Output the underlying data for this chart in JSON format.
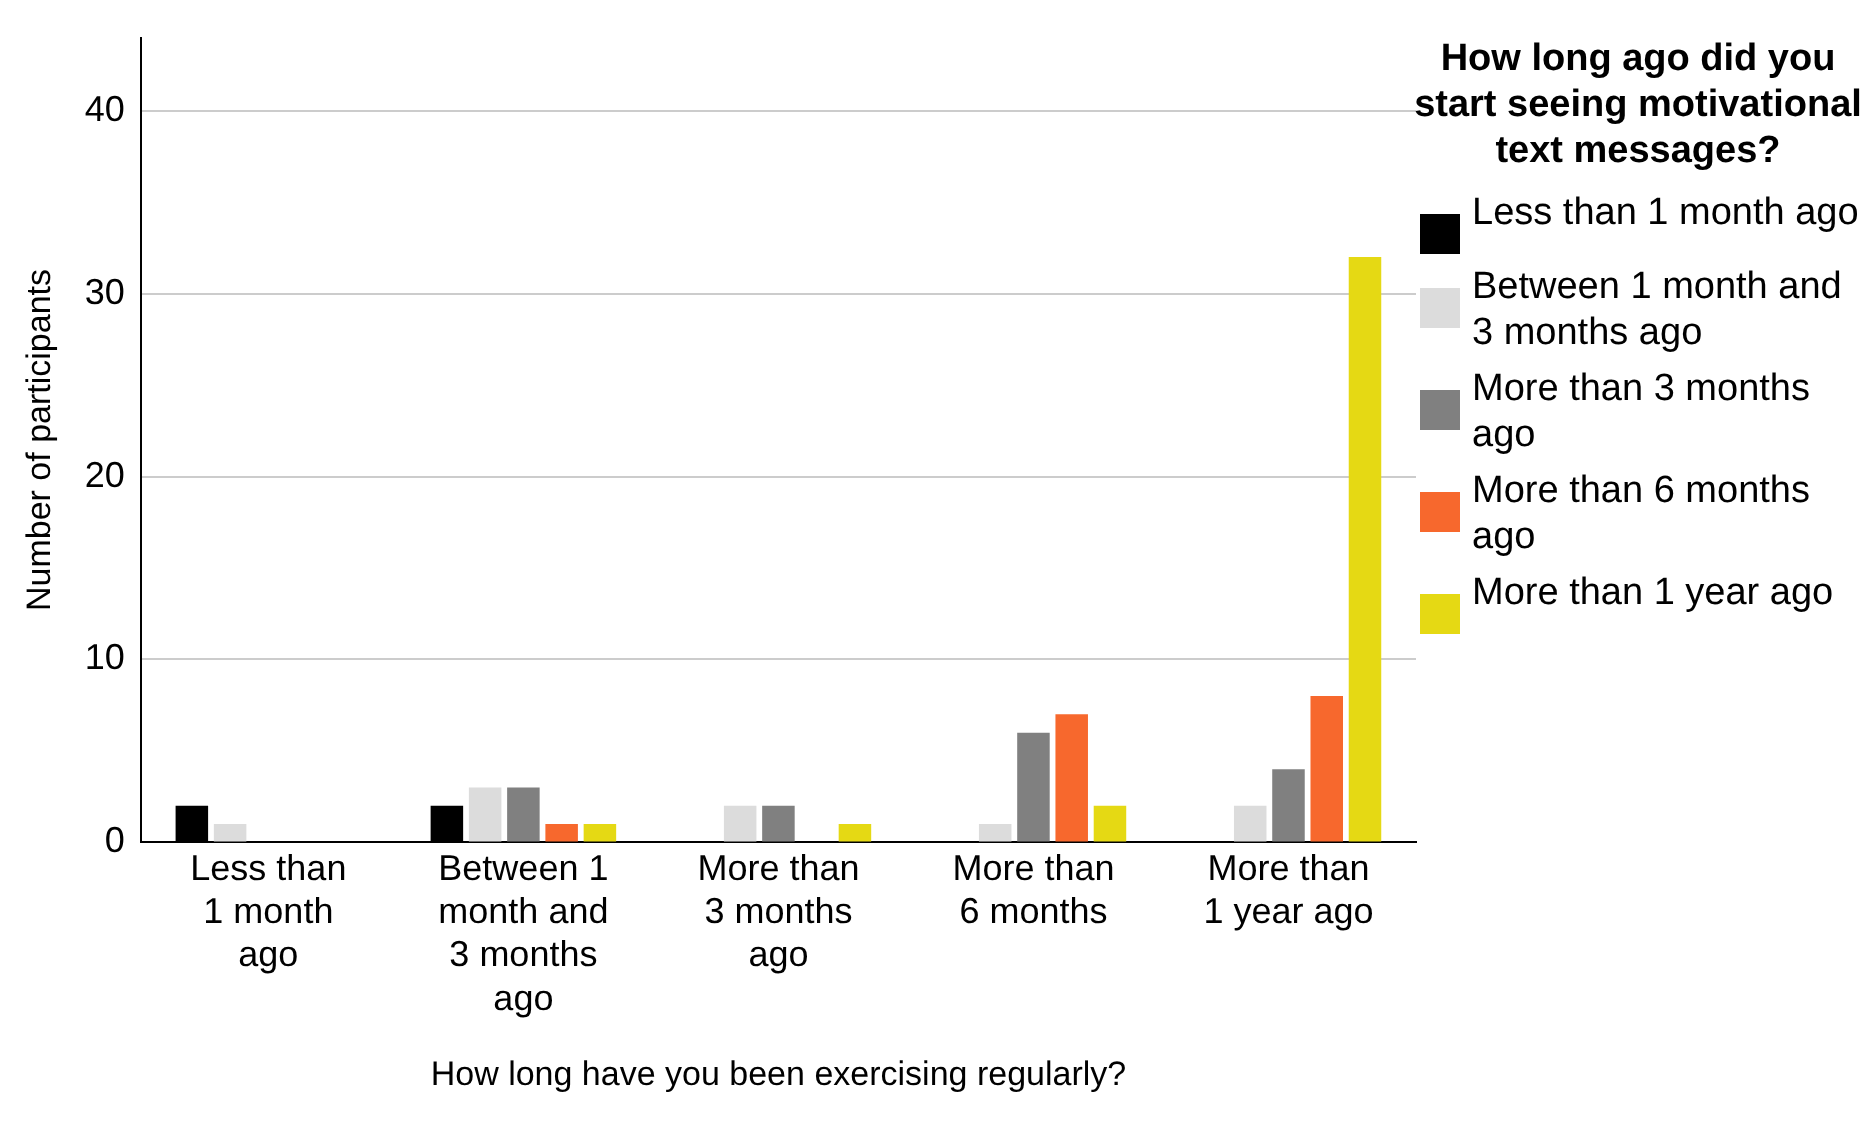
{
  "chart_data": {
    "type": "bar",
    "xlabel": "How long have you been exercising regularly?",
    "ylabel": "Number of participants",
    "legend_title": "How long ago did you start seeing motivational text messages?",
    "categories": [
      "Less than 1 month ago",
      "Between 1 month and 3 months ago",
      "More than 3 months ago",
      "More than 6 months",
      "More than 1 year ago"
    ],
    "series": [
      {
        "name": "Less than 1 month ago",
        "color": "#000000",
        "values": [
          2,
          2,
          0,
          0,
          0
        ]
      },
      {
        "name": "Between 1 month and 3 months ago",
        "color": "#dcdcdc",
        "values": [
          1,
          3,
          2,
          1,
          2
        ]
      },
      {
        "name": "More than 3 months ago",
        "color": "#808080",
        "values": [
          0,
          3,
          2,
          6,
          4
        ]
      },
      {
        "name": "More than 6 months ago",
        "color": "#f7682d",
        "values": [
          0,
          1,
          0,
          7,
          8
        ]
      },
      {
        "name": "More than 1 year ago",
        "color": "#e5d914",
        "values": [
          0,
          1,
          1,
          2,
          32
        ]
      }
    ],
    "ylim": [
      0,
      44
    ],
    "yticks": [
      0,
      10,
      20,
      30,
      40
    ],
    "grid": "y",
    "legend": "right"
  }
}
